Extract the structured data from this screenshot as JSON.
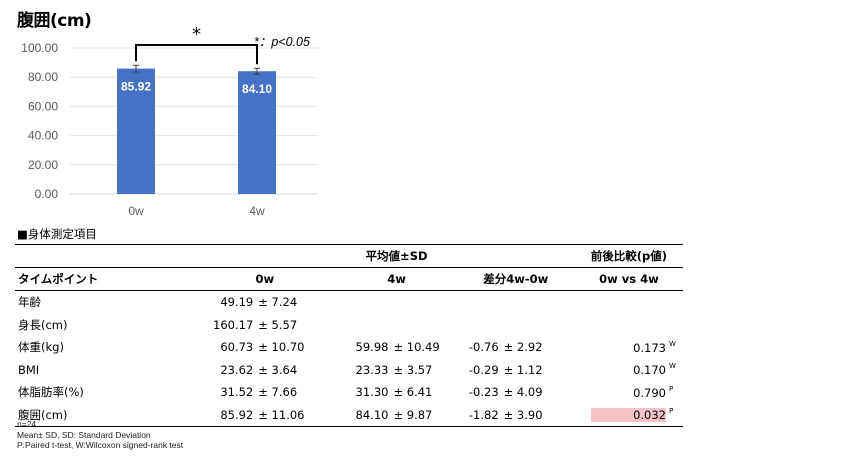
{
  "chart_title": "腹囲(cm)",
  "chart_data": {
    "type": "bar",
    "categories": [
      "0w",
      "4w"
    ],
    "values": [
      85.92,
      84.1
    ],
    "value_labels": [
      "85.92",
      "84.10"
    ],
    "error_bars": [
      2.26,
      2.01
    ],
    "ylim": [
      0,
      100
    ],
    "yticks": [
      "0.00",
      "20.00",
      "40.00",
      "60.00",
      "80.00",
      "100.00"
    ],
    "ytick_values": [
      0,
      20,
      40,
      60,
      80,
      100
    ],
    "bar_color": "#4472c4",
    "significance_marker": "*",
    "significance_note": "*：p<0.05",
    "title": "腹囲(cm)"
  },
  "table_heading": "■身体測定項目",
  "table": {
    "group_header": "平均値±SD",
    "compare_header": "前後比較(p値)",
    "columns": [
      "タイムポイント",
      "0w",
      "4w",
      "差分4w-0w",
      "0w vs 4w"
    ],
    "rows": [
      {
        "label": "年齢",
        "w0_mean": "49.19",
        "w0_sd": "± 7.24",
        "w4_mean": "",
        "w4_sd": "",
        "diff_mean": "",
        "diff_sd": "",
        "p": "",
        "test": ""
      },
      {
        "label": "身長(cm)",
        "w0_mean": "160.17",
        "w0_sd": "± 5.57",
        "w4_mean": "",
        "w4_sd": "",
        "diff_mean": "",
        "diff_sd": "",
        "p": "",
        "test": ""
      },
      {
        "label": "体重(kg)",
        "w0_mean": "60.73",
        "w0_sd": "± 10.70",
        "w4_mean": "59.98",
        "w4_sd": "± 10.49",
        "diff_mean": "-0.76",
        "diff_sd": "± 2.92",
        "p": "0.173",
        "test": "W"
      },
      {
        "label": "BMI",
        "w0_mean": "23.62",
        "w0_sd": "± 3.64",
        "w4_mean": "23.33",
        "w4_sd": "± 3.57",
        "diff_mean": "-0.29",
        "diff_sd": "± 1.12",
        "p": "0.170",
        "test": "W"
      },
      {
        "label": "体脂肪率(%)",
        "w0_mean": "31.52",
        "w0_sd": "± 7.66",
        "w4_mean": "31.30",
        "w4_sd": "± 6.41",
        "diff_mean": "-0.23",
        "diff_sd": "± 4.09",
        "p": "0.790",
        "test": "P"
      },
      {
        "label": "腹囲(cm)",
        "w0_mean": "85.92",
        "w0_sd": "± 11.06",
        "w4_mean": "84.10",
        "w4_sd": "± 9.87",
        "diff_mean": "-1.82",
        "diff_sd": "± 3.90",
        "p": "0.032",
        "test": "P",
        "highlight": true
      }
    ],
    "highlight_color": "#f8c3c8"
  },
  "footnotes": [
    "n=24",
    "Mean± SD, SD: Standard Deviation",
    "P:Paired t-test, W:Wilcoxon signed-rank test"
  ]
}
